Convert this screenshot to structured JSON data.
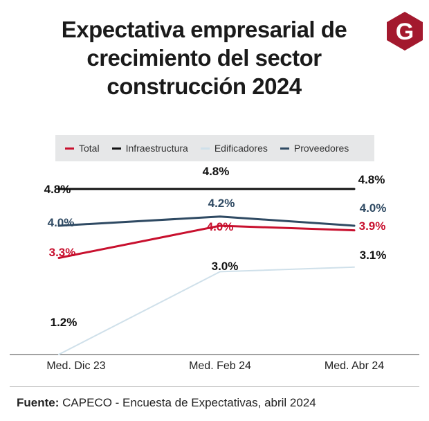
{
  "title_lines": [
    "Expectativa empresarial de",
    "crecimiento del sector",
    "construcción 2024"
  ],
  "logo_letter": "G",
  "source": {
    "label": "Fuente:",
    "text": "CAPECO - Encuesta de Expectativas, abril 2024"
  },
  "chart_data": {
    "type": "line",
    "title": "Expectativa empresarial de crecimiento del sector construcción 2024",
    "categories": [
      "Med. Dic 23",
      "Med. Feb 24",
      "Med. Abr 24"
    ],
    "ylim": [
      1.0,
      5.0
    ],
    "grid": false,
    "legend_position": "top",
    "series": [
      {
        "name": "Total",
        "color": "#c8102e",
        "values": [
          3.3,
          4.0,
          3.9
        ],
        "labels": [
          "3.3%",
          "4.0%",
          "3.9%"
        ]
      },
      {
        "name": "Infraestructura",
        "color": "#111111",
        "values": [
          4.8,
          4.8,
          4.8
        ],
        "labels": [
          "4.8%",
          "4.8%",
          "4.8%"
        ]
      },
      {
        "name": "Edificadores",
        "color": "#cfe0ea",
        "values": [
          1.2,
          3.0,
          3.1
        ],
        "labels": [
          "1.2%",
          "3.0%",
          "3.1%"
        ]
      },
      {
        "name": "Proveedores",
        "color": "#2f4a63",
        "values": [
          4.0,
          4.2,
          4.0
        ],
        "labels": [
          "4.0%",
          "4.2%",
          "4.0%"
        ]
      }
    ]
  }
}
